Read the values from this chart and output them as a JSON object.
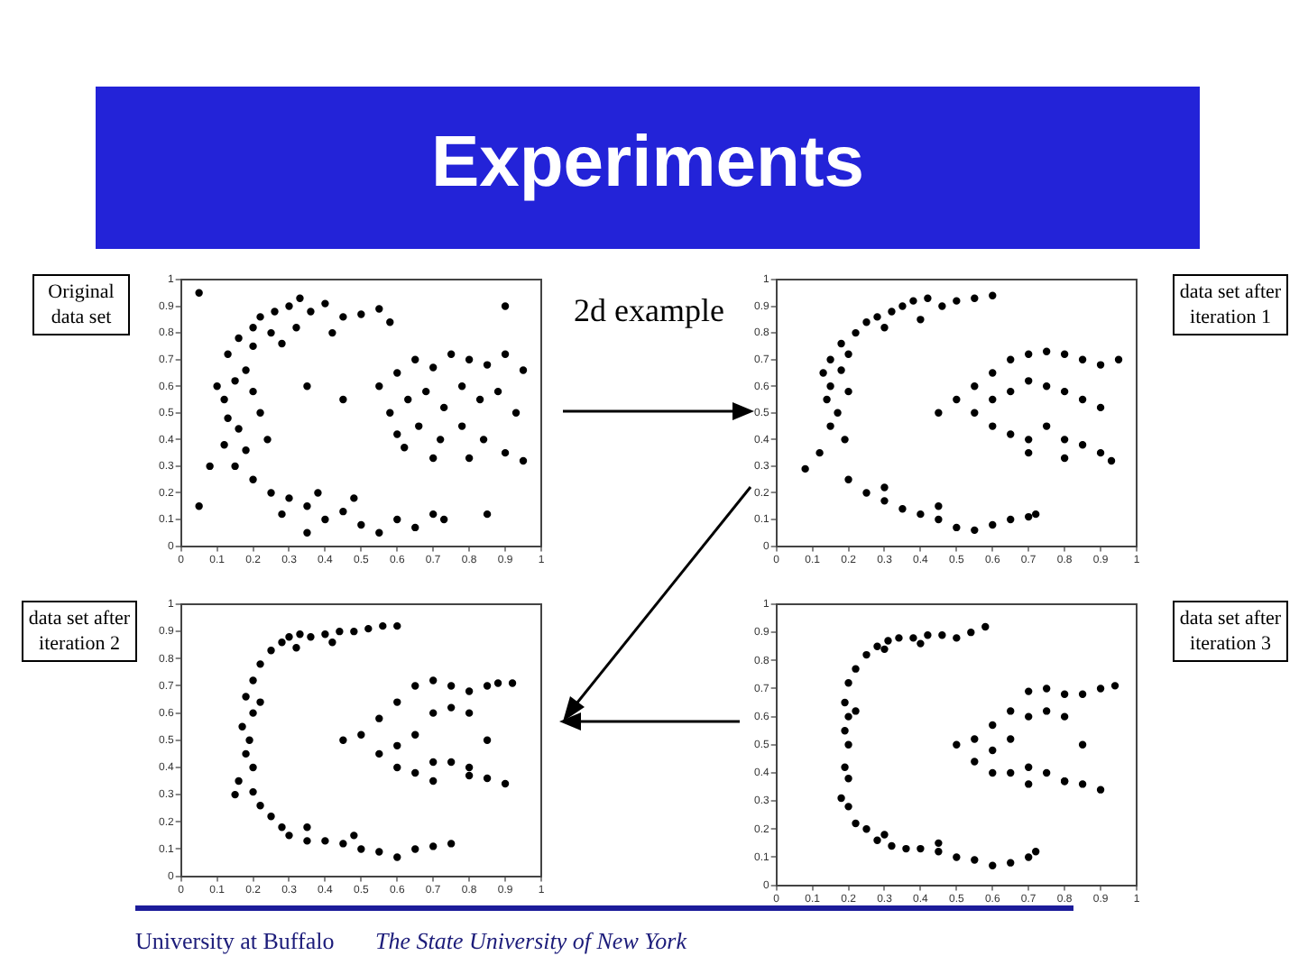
{
  "chart_data": [
    {
      "type": "other",
      "title": "Experiments",
      "annotations": [
        "2d example",
        "University at Buffalo",
        "The State University of New York",
        "Original data set",
        "data set after iteration 1",
        "data set after iteration 2",
        "data set after iteration 3"
      ]
    },
    {
      "type": "scatter",
      "xlim": [
        0,
        1
      ],
      "ylim": [
        0,
        1
      ],
      "xticks": [
        0,
        0.1,
        0.2,
        0.3,
        0.4,
        0.5,
        0.6,
        0.7,
        0.8,
        0.9,
        1
      ],
      "yticks": [
        0,
        0.1,
        0.2,
        0.3,
        0.4,
        0.5,
        0.6,
        0.7,
        0.8,
        0.9,
        1
      ],
      "marker": "circle",
      "series": [
        {
          "color": "#000000",
          "x": [
            0.13,
            0.16,
            0.2,
            0.22,
            0.26,
            0.3,
            0.33,
            0.36,
            0.4,
            0.45,
            0.5,
            0.55,
            0.58,
            0.25,
            0.32,
            0.42,
            0.2,
            0.28,
            0.1,
            0.12,
            0.15,
            0.18,
            0.2,
            0.13,
            0.16,
            0.22,
            0.12,
            0.18,
            0.24,
            0.15,
            0.2,
            0.25,
            0.3,
            0.28,
            0.35,
            0.4,
            0.45,
            0.5,
            0.55,
            0.6,
            0.65,
            0.7,
            0.73,
            0.38,
            0.48,
            0.55,
            0.6,
            0.65,
            0.7,
            0.75,
            0.8,
            0.85,
            0.9,
            0.95,
            0.58,
            0.63,
            0.68,
            0.73,
            0.78,
            0.83,
            0.88,
            0.93,
            0.6,
            0.66,
            0.72,
            0.78,
            0.84,
            0.9,
            0.95,
            0.7,
            0.8,
            0.62,
            0.05,
            0.08,
            0.35,
            0.9,
            0.05,
            0.45,
            0.35,
            0.85
          ],
          "values": [
            0.72,
            0.78,
            0.82,
            0.86,
            0.88,
            0.9,
            0.93,
            0.88,
            0.91,
            0.86,
            0.87,
            0.89,
            0.84,
            0.8,
            0.82,
            0.8,
            0.75,
            0.76,
            0.6,
            0.55,
            0.62,
            0.66,
            0.58,
            0.48,
            0.44,
            0.5,
            0.38,
            0.36,
            0.4,
            0.3,
            0.25,
            0.2,
            0.18,
            0.12,
            0.15,
            0.1,
            0.13,
            0.08,
            0.05,
            0.1,
            0.07,
            0.12,
            0.1,
            0.2,
            0.18,
            0.6,
            0.65,
            0.7,
            0.67,
            0.72,
            0.7,
            0.68,
            0.72,
            0.66,
            0.5,
            0.55,
            0.58,
            0.52,
            0.6,
            0.55,
            0.58,
            0.5,
            0.42,
            0.45,
            0.4,
            0.45,
            0.4,
            0.35,
            0.32,
            0.33,
            0.33,
            0.37,
            0.95,
            0.3,
            0.05,
            0.9,
            0.15,
            0.55,
            0.6,
            0.12
          ]
        }
      ]
    },
    {
      "type": "scatter",
      "xlim": [
        0,
        1
      ],
      "ylim": [
        0,
        1
      ],
      "xticks": [
        0,
        0.1,
        0.2,
        0.3,
        0.4,
        0.5,
        0.6,
        0.7,
        0.8,
        0.9,
        1
      ],
      "yticks": [
        0,
        0.1,
        0.2,
        0.3,
        0.4,
        0.5,
        0.6,
        0.7,
        0.8,
        0.9,
        1
      ],
      "marker": "circle",
      "series": [
        {
          "color": "#000000",
          "x": [
            0.15,
            0.18,
            0.22,
            0.25,
            0.28,
            0.32,
            0.35,
            0.38,
            0.42,
            0.46,
            0.5,
            0.55,
            0.6,
            0.3,
            0.4,
            0.2,
            0.13,
            0.15,
            0.18,
            0.14,
            0.17,
            0.2,
            0.15,
            0.19,
            0.12,
            0.08,
            0.2,
            0.25,
            0.3,
            0.35,
            0.4,
            0.45,
            0.5,
            0.55,
            0.6,
            0.65,
            0.7,
            0.72,
            0.3,
            0.45,
            0.45,
            0.5,
            0.55,
            0.6,
            0.65,
            0.7,
            0.75,
            0.8,
            0.85,
            0.9,
            0.95,
            0.55,
            0.6,
            0.65,
            0.7,
            0.75,
            0.8,
            0.85,
            0.9,
            0.6,
            0.65,
            0.7,
            0.75,
            0.8,
            0.85,
            0.9,
            0.93,
            0.7,
            0.8
          ],
          "values": [
            0.7,
            0.76,
            0.8,
            0.84,
            0.86,
            0.88,
            0.9,
            0.92,
            0.93,
            0.9,
            0.92,
            0.93,
            0.94,
            0.82,
            0.85,
            0.72,
            0.65,
            0.6,
            0.66,
            0.55,
            0.5,
            0.58,
            0.45,
            0.4,
            0.35,
            0.29,
            0.25,
            0.2,
            0.17,
            0.14,
            0.12,
            0.1,
            0.07,
            0.06,
            0.08,
            0.1,
            0.11,
            0.12,
            0.22,
            0.15,
            0.5,
            0.55,
            0.6,
            0.65,
            0.7,
            0.72,
            0.73,
            0.72,
            0.7,
            0.68,
            0.7,
            0.5,
            0.55,
            0.58,
            0.62,
            0.6,
            0.58,
            0.55,
            0.52,
            0.45,
            0.42,
            0.4,
            0.45,
            0.4,
            0.38,
            0.35,
            0.32,
            0.35,
            0.33
          ]
        }
      ]
    },
    {
      "type": "scatter",
      "xlim": [
        0,
        1
      ],
      "ylim": [
        0,
        1
      ],
      "xticks": [
        0,
        0.1,
        0.2,
        0.3,
        0.4,
        0.5,
        0.6,
        0.7,
        0.8,
        0.9,
        1
      ],
      "yticks": [
        0,
        0.1,
        0.2,
        0.3,
        0.4,
        0.5,
        0.6,
        0.7,
        0.8,
        0.9,
        1
      ],
      "marker": "circle",
      "series": [
        {
          "color": "#000000",
          "x": [
            0.2,
            0.22,
            0.25,
            0.28,
            0.3,
            0.33,
            0.36,
            0.4,
            0.44,
            0.48,
            0.52,
            0.56,
            0.6,
            0.32,
            0.42,
            0.18,
            0.2,
            0.22,
            0.17,
            0.19,
            0.18,
            0.2,
            0.16,
            0.2,
            0.15,
            0.22,
            0.25,
            0.28,
            0.3,
            0.35,
            0.4,
            0.45,
            0.5,
            0.55,
            0.6,
            0.65,
            0.7,
            0.75,
            0.35,
            0.48,
            0.45,
            0.5,
            0.55,
            0.6,
            0.65,
            0.7,
            0.75,
            0.8,
            0.85,
            0.88,
            0.92,
            0.55,
            0.6,
            0.65,
            0.7,
            0.75,
            0.8,
            0.85,
            0.6,
            0.65,
            0.7,
            0.75,
            0.8,
            0.85,
            0.9,
            0.7,
            0.8
          ],
          "values": [
            0.72,
            0.78,
            0.83,
            0.86,
            0.88,
            0.89,
            0.88,
            0.89,
            0.9,
            0.9,
            0.91,
            0.92,
            0.92,
            0.84,
            0.86,
            0.66,
            0.6,
            0.64,
            0.55,
            0.5,
            0.45,
            0.4,
            0.35,
            0.31,
            0.3,
            0.26,
            0.22,
            0.18,
            0.15,
            0.13,
            0.13,
            0.12,
            0.1,
            0.09,
            0.07,
            0.1,
            0.11,
            0.12,
            0.18,
            0.15,
            0.5,
            0.52,
            0.58,
            0.64,
            0.7,
            0.72,
            0.7,
            0.68,
            0.7,
            0.71,
            0.71,
            0.45,
            0.48,
            0.52,
            0.6,
            0.62,
            0.6,
            0.5,
            0.4,
            0.38,
            0.42,
            0.42,
            0.4,
            0.36,
            0.34,
            0.35,
            0.37
          ]
        }
      ]
    },
    {
      "type": "scatter",
      "xlim": [
        0,
        1
      ],
      "ylim": [
        0,
        1
      ],
      "xticks": [
        0,
        0.1,
        0.2,
        0.3,
        0.4,
        0.5,
        0.6,
        0.7,
        0.8,
        0.9,
        1
      ],
      "yticks": [
        0,
        0.1,
        0.2,
        0.3,
        0.4,
        0.5,
        0.6,
        0.7,
        0.8,
        0.9,
        1
      ],
      "marker": "circle",
      "series": [
        {
          "color": "#000000",
          "x": [
            0.2,
            0.22,
            0.25,
            0.28,
            0.31,
            0.34,
            0.38,
            0.42,
            0.46,
            0.5,
            0.54,
            0.58,
            0.3,
            0.4,
            0.19,
            0.2,
            0.22,
            0.19,
            0.2,
            0.19,
            0.2,
            0.18,
            0.2,
            0.22,
            0.25,
            0.28,
            0.32,
            0.36,
            0.4,
            0.45,
            0.5,
            0.55,
            0.6,
            0.65,
            0.7,
            0.72,
            0.3,
            0.45,
            0.5,
            0.55,
            0.6,
            0.65,
            0.7,
            0.75,
            0.8,
            0.85,
            0.9,
            0.94,
            0.55,
            0.6,
            0.65,
            0.7,
            0.75,
            0.8,
            0.85,
            0.6,
            0.65,
            0.7,
            0.75,
            0.8,
            0.85,
            0.9,
            0.7,
            0.8
          ],
          "values": [
            0.72,
            0.77,
            0.82,
            0.85,
            0.87,
            0.88,
            0.88,
            0.89,
            0.89,
            0.88,
            0.9,
            0.92,
            0.84,
            0.86,
            0.65,
            0.6,
            0.62,
            0.55,
            0.5,
            0.42,
            0.38,
            0.31,
            0.28,
            0.22,
            0.2,
            0.16,
            0.14,
            0.13,
            0.13,
            0.12,
            0.1,
            0.09,
            0.07,
            0.08,
            0.1,
            0.12,
            0.18,
            0.15,
            0.5,
            0.52,
            0.57,
            0.62,
            0.69,
            0.7,
            0.68,
            0.68,
            0.7,
            0.71,
            0.44,
            0.48,
            0.52,
            0.6,
            0.62,
            0.6,
            0.5,
            0.4,
            0.4,
            0.42,
            0.4,
            0.37,
            0.36,
            0.34,
            0.36,
            0.37
          ]
        }
      ]
    }
  ]
}
